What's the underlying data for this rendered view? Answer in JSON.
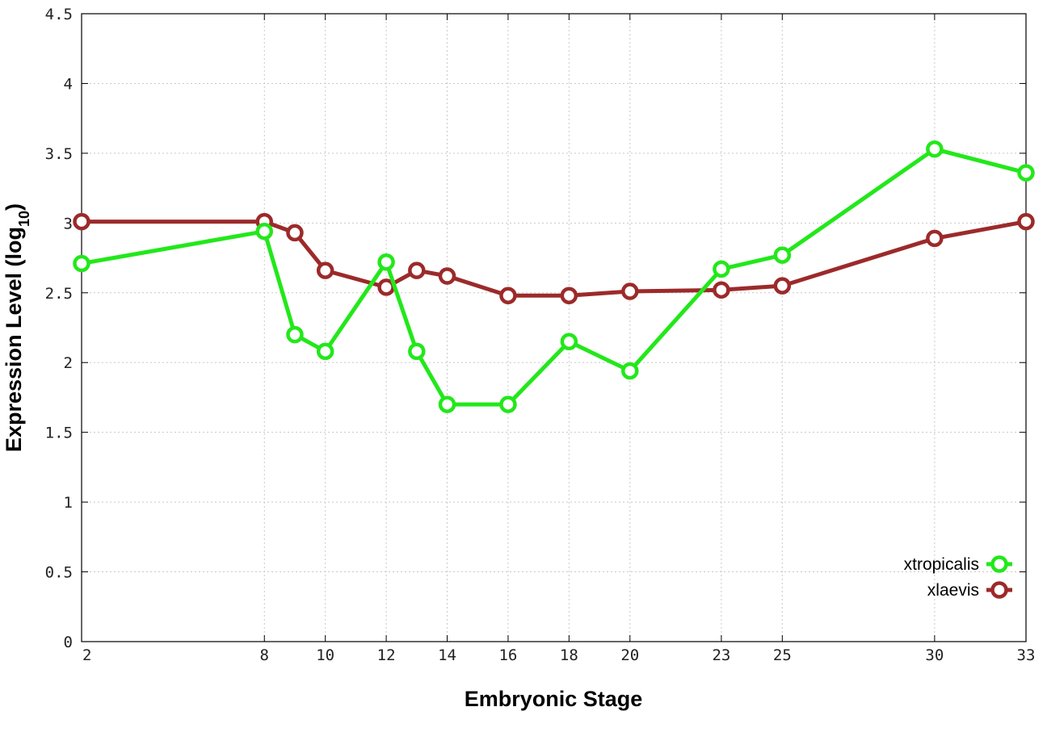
{
  "chart_data": {
    "type": "line",
    "xlabel": "Embryonic Stage",
    "ylabel_main": "Expression Level (log",
    "ylabel_sub": "10",
    "ylabel_close": ")",
    "xlim": [
      2,
      33
    ],
    "ylim": [
      0,
      4.5
    ],
    "x_ticks": [
      2,
      8,
      10,
      12,
      14,
      16,
      18,
      20,
      23,
      25,
      30,
      33
    ],
    "y_ticks": [
      0,
      0.5,
      1,
      1.5,
      2,
      2.5,
      3,
      3.5,
      4,
      4.5
    ],
    "x_tick_labels": [
      "2",
      "8",
      "10",
      "12",
      "14",
      "16",
      "18",
      "20",
      "23",
      "25",
      "30",
      "33"
    ],
    "y_tick_labels": [
      "0",
      "0.5",
      "1",
      "1.5",
      "2",
      "2.5",
      "3",
      "3.5",
      "4",
      "4.5"
    ],
    "grid": true,
    "legend_position": "bottom-right",
    "series": [
      {
        "name": "xtropicalis",
        "color": "#22e81a",
        "x": [
          2,
          8,
          9,
          10,
          12,
          13,
          14,
          16,
          18,
          20,
          23,
          25,
          30,
          33
        ],
        "y": [
          2.71,
          2.94,
          2.2,
          2.08,
          2.72,
          2.08,
          1.7,
          1.7,
          2.15,
          1.94,
          2.67,
          2.77,
          3.53,
          3.36
        ]
      },
      {
        "name": "xlaevis",
        "color": "#9c2a2a",
        "x": [
          2,
          8,
          9,
          10,
          12,
          13,
          14,
          16,
          18,
          20,
          23,
          25,
          30,
          33
        ],
        "y": [
          3.01,
          3.01,
          2.93,
          2.66,
          2.54,
          2.66,
          2.62,
          2.48,
          2.48,
          2.51,
          2.52,
          2.55,
          2.89,
          3.01
        ]
      }
    ]
  }
}
